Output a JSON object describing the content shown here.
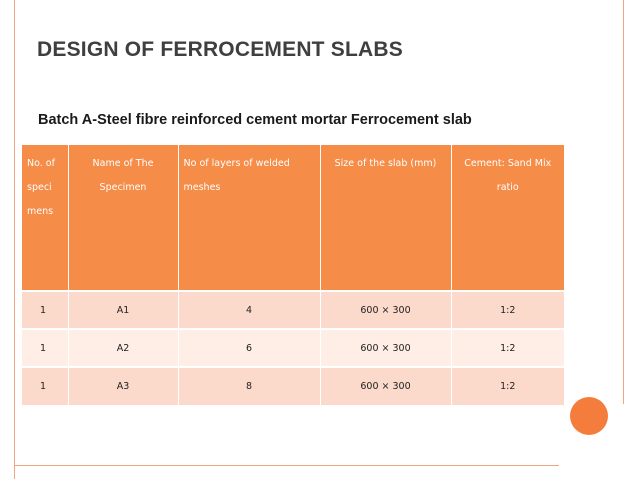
{
  "slide": {
    "title": "DESIGN OF FERROCEMENT SLABS",
    "subtitle": "Batch A-Steel fibre reinforced cement mortar Ferrocement slab"
  },
  "table": {
    "headers": [
      "No. of speci mens",
      "Name of The Specimen",
      "No of layers  of welded meshes",
      "Size of the slab (mm)",
      "Cement: Sand Mix ratio"
    ],
    "rows": [
      [
        "1",
        "A1",
        "4",
        "600 × 300",
        "1:2"
      ],
      [
        "1",
        "A2",
        "6",
        "600 × 300",
        "1:2"
      ],
      [
        "1",
        "A3",
        "8",
        "600 × 300",
        "1:2"
      ]
    ]
  },
  "colors": {
    "accent": "#f58c47",
    "row_dark": "#fcdacb",
    "row_light": "#feeee5",
    "title_text": "#3f3f3f"
  }
}
